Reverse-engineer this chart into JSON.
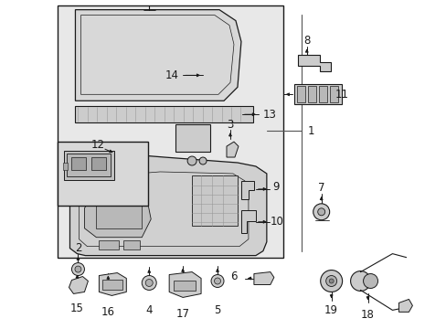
{
  "bg": "#f0f0f0",
  "white": "#ffffff",
  "black": "#000000",
  "gray": "#888888",
  "line_color": "#1a1a1a",
  "box_bg": "#e8e8e8",
  "figsize": [
    4.89,
    3.6
  ],
  "dpi": 100
}
